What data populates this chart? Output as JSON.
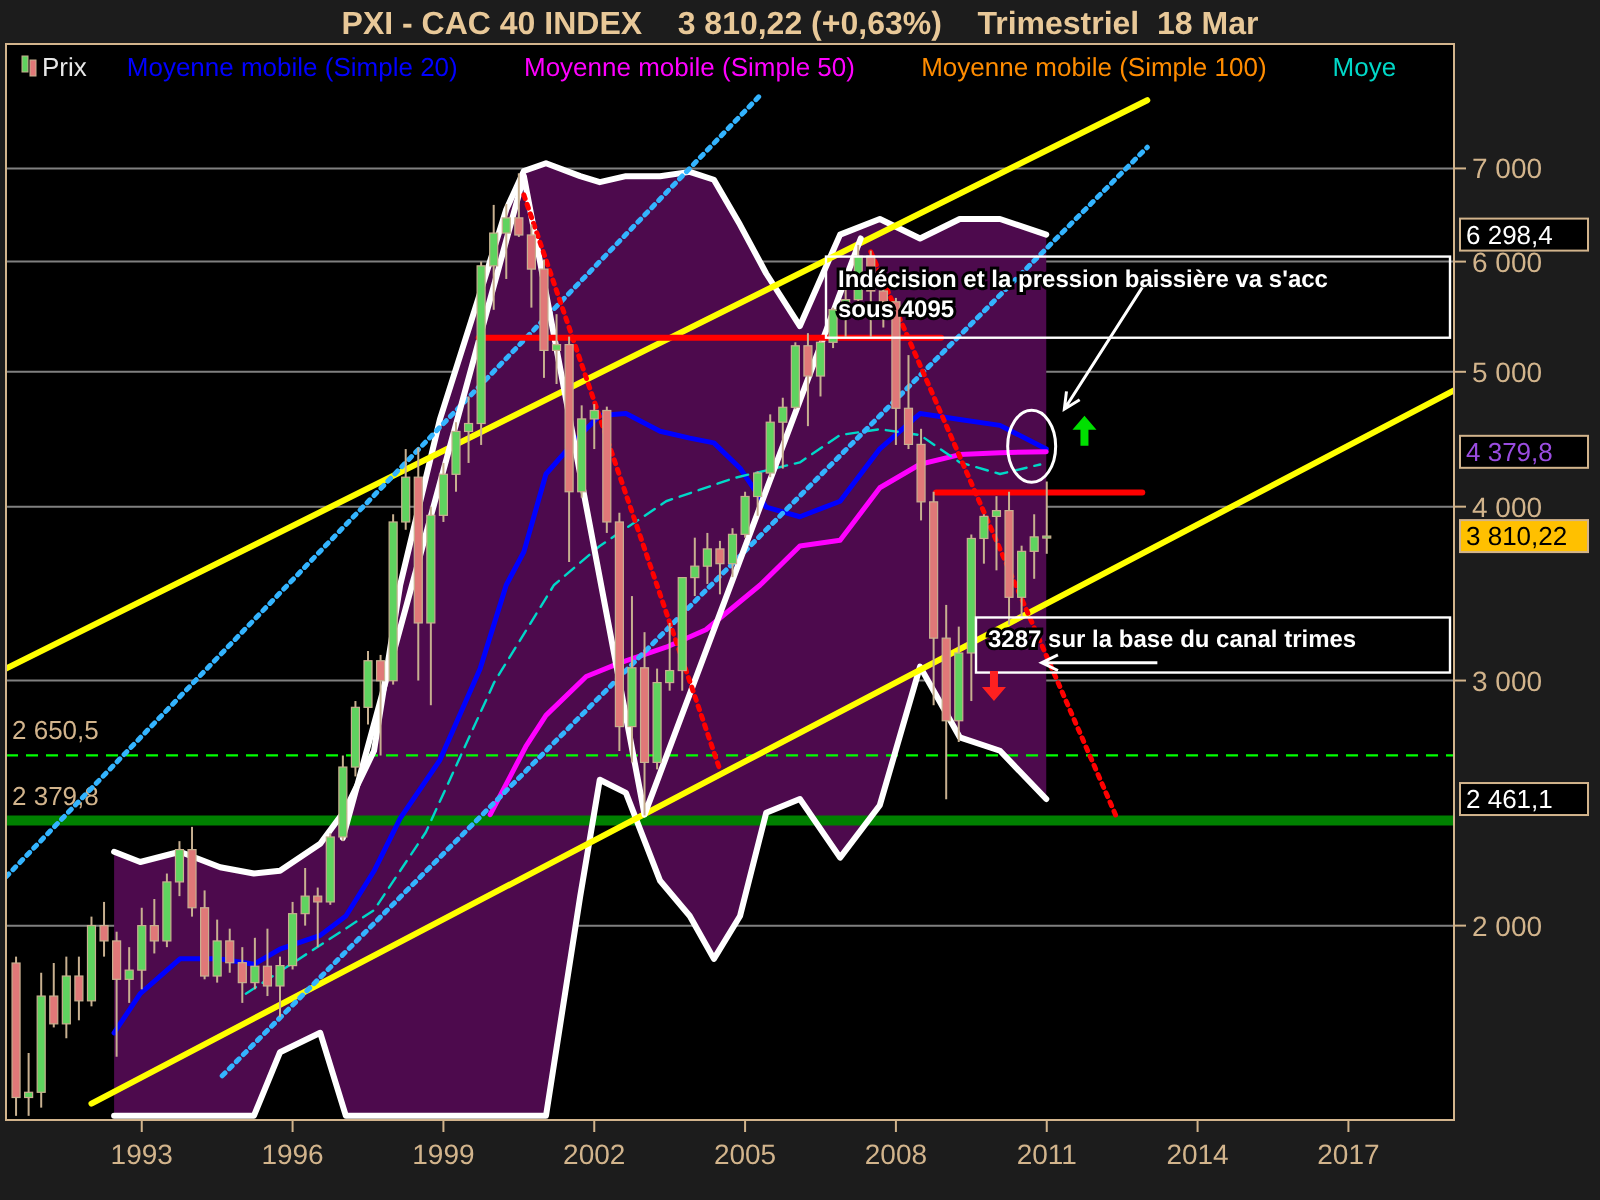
{
  "chart_data": {
    "type": "candlestick",
    "title": "PXI - CAC 40 INDEX    3 810,22 (+0,63%)    Trimestriel  18 Mar",
    "xlim": [
      1990.3,
      2019.1
    ],
    "xticks": [
      1993,
      1996,
      1999,
      2002,
      2005,
      2008,
      2011,
      2014,
      2017
    ],
    "ylim": [
      1450,
      8600
    ],
    "log": "y",
    "yticks": [
      {
        "value": 2000,
        "label": "2 000"
      },
      {
        "value": 3000,
        "label": "3 000"
      },
      {
        "value": 4000,
        "label": "4 000"
      },
      {
        "value": 5000,
        "label": "5 000"
      },
      {
        "value": 6000,
        "label": "6 000"
      },
      {
        "value": 7000,
        "label": "7 000"
      }
    ],
    "grid": "y",
    "legend": "top left",
    "series": [
      {
        "name": "Prix",
        "x": [
          1990.5,
          1990.75,
          1991,
          1991.25,
          1991.5,
          1991.75,
          1992,
          1992.25,
          1992.5,
          1992.75,
          1993,
          1993.25,
          1993.5,
          1993.75,
          1994,
          1994.25,
          1994.5,
          1994.75,
          1995,
          1995.25,
          1995.5,
          1995.75,
          1996,
          1996.25,
          1996.5,
          1996.75,
          1997,
          1997.25,
          1997.5,
          1997.75,
          1998,
          1998.25,
          1998.5,
          1998.75,
          1999,
          1999.25,
          1999.5,
          1999.75,
          2000,
          2000.25,
          2000.5,
          2000.75,
          2001,
          2001.25,
          2001.5,
          2001.75,
          2002,
          2002.25,
          2002.5,
          2002.75,
          2003,
          2003.25,
          2003.5,
          2003.75,
          2004,
          2004.25,
          2004.5,
          2004.75,
          2005,
          2005.25,
          2005.5,
          2005.75,
          2006,
          2006.25,
          2006.5,
          2006.75,
          2007,
          2007.25,
          2007.5,
          2007.75,
          2008,
          2008.25,
          2008.5,
          2008.75,
          2009,
          2009.25,
          2009.5,
          2009.75,
          2010,
          2010.25,
          2010.5,
          2010.75,
          2011
        ],
        "ohlc": [
          [
            1880,
            1900,
            1460,
            1505
          ],
          [
            1505,
            1620,
            1460,
            1518
          ],
          [
            1518,
            1850,
            1480,
            1780
          ],
          [
            1780,
            1880,
            1690,
            1700
          ],
          [
            1700,
            1900,
            1660,
            1840
          ],
          [
            1840,
            1900,
            1710,
            1766
          ],
          [
            1766,
            2030,
            1750,
            2000
          ],
          [
            2000,
            2080,
            1900,
            1950
          ],
          [
            1950,
            1980,
            1610,
            1830
          ],
          [
            1830,
            1930,
            1760,
            1858
          ],
          [
            1858,
            2060,
            1800,
            2000
          ],
          [
            2000,
            2090,
            1910,
            1950
          ],
          [
            1950,
            2180,
            1930,
            2150
          ],
          [
            2150,
            2300,
            2100,
            2268
          ],
          [
            2268,
            2355,
            2030,
            2060
          ],
          [
            2060,
            2120,
            1830,
            1840
          ],
          [
            1840,
            2020,
            1820,
            1950
          ],
          [
            1950,
            1990,
            1850,
            1881
          ],
          [
            1881,
            1930,
            1760,
            1820
          ],
          [
            1820,
            1960,
            1800,
            1870
          ],
          [
            1870,
            1990,
            1780,
            1810
          ],
          [
            1810,
            1900,
            1720,
            1872
          ],
          [
            1872,
            2080,
            1860,
            2040
          ],
          [
            2040,
            2200,
            2000,
            2100
          ],
          [
            2100,
            2130,
            1930,
            2080
          ],
          [
            2080,
            2330,
            2070,
            2316
          ],
          [
            2316,
            2650,
            2300,
            2600
          ],
          [
            2600,
            2900,
            2560,
            2870
          ],
          [
            2870,
            3150,
            2790,
            3100
          ],
          [
            3100,
            3130,
            2650,
            2999
          ],
          [
            2999,
            3950,
            2980,
            3900
          ],
          [
            3900,
            4400,
            3850,
            4200
          ],
          [
            4200,
            4410,
            3000,
            3300
          ],
          [
            3300,
            4000,
            2880,
            3943
          ],
          [
            3943,
            4300,
            3900,
            4220
          ],
          [
            4220,
            4600,
            4100,
            4530
          ],
          [
            4530,
            4800,
            4300,
            4590
          ],
          [
            4590,
            6000,
            4430,
            5958
          ],
          [
            5958,
            6590,
            5540,
            6290
          ],
          [
            6290,
            6600,
            5830,
            6450
          ],
          [
            6450,
            6944,
            6250,
            6270
          ],
          [
            6270,
            6380,
            5560,
            5926
          ],
          [
            5926,
            6020,
            4950,
            5180
          ],
          [
            5180,
            5500,
            4900,
            5230
          ],
          [
            5230,
            5300,
            3650,
            4100
          ],
          [
            4100,
            4730,
            4060,
            4625
          ],
          [
            4625,
            4740,
            4400,
            4690
          ],
          [
            4690,
            4720,
            3830,
            3900
          ],
          [
            3900,
            3960,
            2670,
            2780
          ],
          [
            2780,
            3450,
            2620,
            3064
          ],
          [
            3064,
            3250,
            2400,
            2620
          ],
          [
            2620,
            3060,
            2590,
            2990
          ],
          [
            2990,
            3300,
            2950,
            3050
          ],
          [
            3050,
            3560,
            2950,
            3557
          ],
          [
            3557,
            3800,
            3450,
            3625
          ],
          [
            3625,
            3830,
            3520,
            3730
          ],
          [
            3730,
            3780,
            3460,
            3640
          ],
          [
            3640,
            3860,
            3560,
            3821
          ],
          [
            3821,
            4100,
            3800,
            4068
          ],
          [
            4068,
            4240,
            3940,
            4229
          ],
          [
            4229,
            4660,
            4200,
            4600
          ],
          [
            4600,
            4790,
            4260,
            4715
          ],
          [
            4715,
            5250,
            4700,
            5220
          ],
          [
            5220,
            5330,
            4570,
            4965
          ],
          [
            4965,
            5260,
            4800,
            5250
          ],
          [
            5250,
            5560,
            5200,
            5541
          ],
          [
            5541,
            5780,
            5300,
            5634
          ],
          [
            5634,
            6168,
            5620,
            6054
          ],
          [
            6054,
            6110,
            5300,
            5715
          ],
          [
            5715,
            5920,
            5380,
            5614
          ],
          [
            5614,
            5650,
            4430,
            4707
          ],
          [
            4707,
            5140,
            4400,
            4434
          ],
          [
            4434,
            4550,
            3910,
            4032
          ],
          [
            4032,
            4100,
            2880,
            3218
          ],
          [
            3218,
            3400,
            2465,
            2807
          ],
          [
            2807,
            3280,
            2710,
            3140
          ],
          [
            3140,
            3820,
            2900,
            3795
          ],
          [
            3795,
            3950,
            3640,
            3936
          ],
          [
            3936,
            4070,
            3600,
            3974
          ],
          [
            3974,
            4100,
            3290,
            3443
          ],
          [
            3443,
            3750,
            3330,
            3715
          ],
          [
            3715,
            3950,
            3550,
            3805
          ],
          [
            3805,
            4170,
            3700,
            3810
          ]
        ]
      },
      {
        "type": "line",
        "name": "Moyenne mobile (Simple 20)",
        "color": "#0000ff",
        "x": [
          1992.45,
          1992.97,
          1993.76,
          1994.56,
          1995.23,
          1995.75,
          1996.55,
          1997.06,
          1997.62,
          1998.14,
          1998.93,
          1999.73,
          2000.25,
          2000.6,
          2001.04,
          2001.72,
          2002.11,
          2002.63,
          2003.31,
          2003.9,
          2004.38,
          2004.9,
          2005.42,
          2006.09,
          2006.89,
          2007.68,
          2008.48,
          2009.27,
          2010.07,
          2010.99
        ],
        "values": [
          1675,
          1787,
          1893,
          1893,
          1876,
          1924,
          1968,
          2032,
          2189,
          2388,
          2630,
          3059,
          3514,
          3712,
          4222,
          4503,
          4651,
          4666,
          4532,
          4480,
          4445,
          4263,
          3997,
          3934,
          4036,
          4402,
          4666,
          4621,
          4576,
          4400
        ],
        "lower": [
          1460,
          1460,
          1460,
          1460,
          1460,
          1622,
          1675,
          1460,
          1460,
          1460,
          1460,
          1460,
          1460,
          1460,
          1460,
          2099,
          2546,
          2491,
          2154,
          2032,
          1893,
          2032,
          2411,
          2466,
          2238,
          2441,
          3070,
          2731,
          2671,
          2466
        ],
        "upper": [
          2260,
          2222,
          2260,
          2203,
          2180,
          2190,
          2290,
          2426,
          2671,
          3514,
          4621,
          5696,
          6540,
          6970,
          7060,
          6911,
          6843,
          6911,
          6911,
          6960,
          6870,
          6376,
          5883,
          5393,
          6274,
          6438,
          6234,
          6438,
          6438,
          6274
        ]
      },
      {
        "type": "line",
        "name": "Moyenne mobile (Simple 50)",
        "color": "#ff00ff",
        "x": [
          1999.93,
          2000.64,
          2001.04,
          2001.84,
          2002.51,
          2003.43,
          2004.22,
          2005.3,
          2006.09,
          2006.89,
          2007.68,
          2008.48,
          2009.27,
          2010.07,
          2010.99
        ],
        "values": [
          2403,
          2690,
          2832,
          3020,
          3089,
          3170,
          3263,
          3514,
          3748,
          3784,
          4127,
          4291,
          4360,
          4374,
          4380
        ]
      },
      {
        "type": "line",
        "name": "Moyenne mobile (Simple 100)",
        "color": "#ff8c00"
      },
      {
        "type": "line",
        "color": "#ffffff",
        "x": [
          1992.45,
          1992.97,
          1993.76,
          1994.56,
          1995.23,
          1995.75,
          1996.55,
          1997.06,
          1997.62,
          1998.14,
          1998.93,
          1999.73,
          2000.25,
          2000.6,
          2001.04,
          2001.72,
          2002.11,
          2002.63,
          2003.31,
          2003.9,
          2004.38,
          2004.9,
          2005.42,
          2006.09,
          2006.89,
          2007.68,
          2008.48,
          2009.27,
          2010.07,
          2010.99
        ],
        "values": [
          2260,
          2222,
          2260,
          2203,
          2180,
          2190,
          2290,
          2426,
          2671,
          3514,
          4621,
          5696,
          6540,
          6970,
          7060,
          6911,
          6843,
          6911,
          6911,
          6960,
          6870,
          6376,
          5883,
          5393,
          6274,
          6438,
          6234,
          6438,
          6438,
          6274
        ]
      },
      {
        "type": "line",
        "color": "#ffffff",
        "x": [
          1992.45,
          1992.97,
          1993.76,
          1994.56,
          1995.23,
          1995.75,
          1996.55,
          1997.06,
          1997.62,
          1998.14,
          1998.93,
          1999.73,
          2000.25,
          2000.6,
          2001.04,
          2001.72,
          2002.11,
          2002.63,
          2003.31,
          2003.9,
          2004.38,
          2004.9,
          2005.42,
          2006.09,
          2006.89,
          2007.68,
          2008.48,
          2009.27,
          2010.07,
          2010.99
        ],
        "values": [
          1460,
          1460,
          1460,
          1460,
          1460,
          1622,
          1675,
          1460,
          1460,
          1460,
          1460,
          1460,
          1460,
          1460,
          1460,
          2099,
          2546,
          2491,
          2154,
          2032,
          1893,
          2032,
          2411,
          2466,
          2238,
          2441,
          3070,
          2731,
          2671,
          2466
        ]
      },
      {
        "type": "line",
        "name": "Moye",
        "color": "#00d8c8",
        "line_style": "dashed",
        "x": [
          1995.07,
          1997.62,
          1998.65,
          2000.01,
          2001.2,
          2002.11,
          2003.43,
          2004.78,
          2006.09,
          2006.89,
          2007.68,
          2008.48,
          2009.27,
          2010.07,
          2010.87
        ],
        "values": [
          1787,
          2052,
          2334,
          2991,
          3514,
          3748,
          4036,
          4194,
          4304,
          4503,
          4547,
          4503,
          4304,
          4222,
          4289
        ]
      },
      {
        "type": "line",
        "color": "#ffff00",
        "x": [
          1990.3,
          2013.0
        ],
        "values": [
          3060,
          7836
        ]
      },
      {
        "type": "line",
        "color": "#ffff00",
        "x": [
          1992.0,
          2019.1
        ],
        "values": [
          1490,
          4849
        ]
      },
      {
        "type": "line",
        "color": "#33b4ff",
        "line_style": "dotted",
        "x": [
          1990.3,
          2005.3
        ],
        "values": [
          2168,
          7900
        ]
      },
      {
        "type": "line",
        "color": "#33b4ff",
        "line_style": "dotted",
        "x": [
          1994.6,
          2013.0
        ],
        "values": [
          1560,
          7250
        ]
      },
      {
        "type": "line",
        "color": "#ffffff",
        "x": [
          1997.0,
          2000.6,
          2003.0,
          2007.3
        ],
        "values": [
          2312,
          6912,
          2403,
          6234
        ]
      },
      {
        "type": "line",
        "color": "#ff0000",
        "line_style": "dotted",
        "x": [
          2000.6,
          2004.5
        ],
        "values": [
          6700,
          2588
        ]
      },
      {
        "type": "line",
        "color": "#ff0000",
        "line_style": "dotted",
        "x": [
          2007.5,
          2012.4
        ],
        "values": [
          6098,
          2388
        ]
      },
      {
        "type": "line",
        "color": "#ff0000",
        "x": [
          1999.7,
          2008.9
        ],
        "values": [
          5290,
          5290
        ]
      },
      {
        "type": "line",
        "color": "#ff0000",
        "x": [
          2008.8,
          2012.9
        ],
        "values": [
          4095,
          4095
        ]
      }
    ],
    "ref_lines": [
      {
        "axis": "y",
        "value": 2650.5,
        "label": "2 650,5",
        "color": "#00ff00",
        "line_style": "dashed"
      },
      {
        "axis": "y",
        "value": 2379.8,
        "label": "2 379,8",
        "color": "#008000"
      }
    ],
    "annotations": [
      "Indécision et la pression baissière va s'acc\nsous 4095",
      "3287 sur la base du canal trimes",
      "6 298,4",
      "4 379,8",
      "3 810,22",
      "2 461,1"
    ]
  }
}
